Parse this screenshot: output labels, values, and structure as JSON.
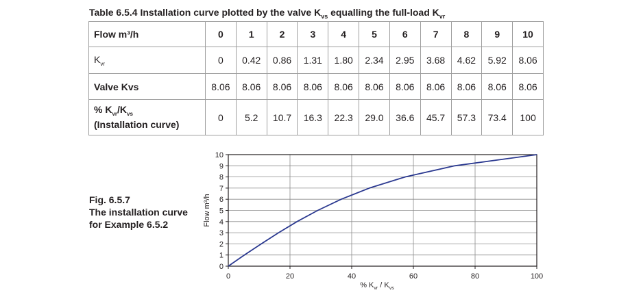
{
  "caption": {
    "prefix": "Table 6.5.4 Installation curve plotted by the valve K",
    "sub1": "vs",
    "middle": " equalling the full-load K",
    "sub2": "vr"
  },
  "table": {
    "flow_label": "Flow m³/h",
    "flow": [
      "0",
      "1",
      "2",
      "3",
      "4",
      "5",
      "6",
      "7",
      "8",
      "9",
      "10"
    ],
    "kvr_label": "K",
    "kvr_sub": "vr",
    "kvr": [
      "0",
      "0.42",
      "0.86",
      "1.31",
      "1.80",
      "2.34",
      "2.95",
      "3.68",
      "4.62",
      "5.92",
      "8.06"
    ],
    "kvs_label": "Valve Kvs",
    "kvs": [
      "8.06",
      "8.06",
      "8.06",
      "8.06",
      "8.06",
      "8.06",
      "8.06",
      "8.06",
      "8.06",
      "8.06",
      "8.06"
    ],
    "pct_label_a": "% K",
    "pct_label_sub1": "vr",
    "pct_label_b": "/K",
    "pct_label_sub2": "vs",
    "pct_label_line2": "(Installation curve)",
    "pct": [
      "0",
      "5.2",
      "10.7",
      "16.3",
      "22.3",
      "29.0",
      "36.6",
      "45.7",
      "57.3",
      "73.4",
      "100"
    ]
  },
  "figure": {
    "line1": "Fig. 6.5.7",
    "line2": "The installation curve",
    "line3": "for Example 6.5.2"
  },
  "chart_data": {
    "type": "line",
    "xlabel": "% K",
    "xlabel_sub1": "vr",
    "xlabel_mid": " / K",
    "xlabel_sub2": "vs",
    "ylabel": "Flow m³/h",
    "xlim": [
      0,
      100
    ],
    "ylim": [
      0,
      10
    ],
    "xticks": [
      "0",
      "20",
      "40",
      "60",
      "80",
      "100"
    ],
    "yticks": [
      "0",
      "1",
      "2",
      "3",
      "4",
      "5",
      "6",
      "7",
      "8",
      "9",
      "10"
    ],
    "grid": true,
    "series": [
      {
        "color": "#2b3990",
        "x": [
          0,
          5.2,
          10.7,
          16.3,
          22.3,
          29.0,
          36.6,
          45.7,
          57.3,
          73.4,
          100
        ],
        "y": [
          0,
          1,
          2,
          3,
          4,
          5,
          6,
          7,
          8,
          9,
          10
        ]
      }
    ]
  }
}
